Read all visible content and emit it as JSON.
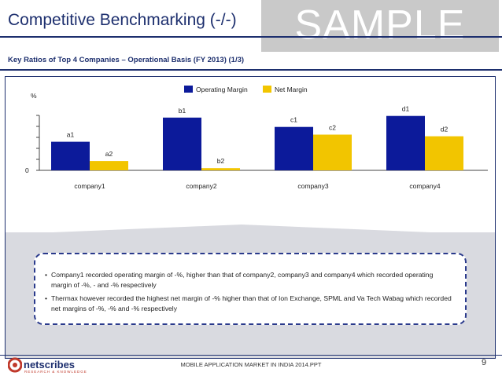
{
  "slide": {
    "title": "Competitive Benchmarking (-/-)",
    "watermark": "SAMPLE",
    "subtitle": "Key Ratios of Top 4 Companies – Operational Basis (FY 2013) (1/3)",
    "footer": "MOBILE APPLICATION MARKET IN INDIA 2014.PPT",
    "page_number": "9",
    "logo_text": "netscribes",
    "logo_tagline": "RESEARCH & KNOWLEDGE"
  },
  "colors": {
    "navy": "#1d2f6e",
    "operating": "#0c1a9a",
    "net": "#f2c500"
  },
  "bullets": [
    "Company1 recorded operating margin of -%, higher than that of company2, company3 and company4 which recorded operating margin of -%, - and -% respectively",
    "Thermax however recorded the highest net margin of -% higher than that of Ion Exchange, SPML and Va Tech Wabag which recorded net margins of -%, -% and -% respectively"
  ],
  "chart_data": {
    "type": "bar",
    "ylabel": "%",
    "ytick_labels": [
      "0"
    ],
    "ylim": [
      0,
      100
    ],
    "legend_position": "top-center",
    "categories": [
      "company1",
      "company2",
      "company3",
      "company4"
    ],
    "series": [
      {
        "name": "Operating Margin",
        "color": "#0c1a9a",
        "values": [
          52,
          96,
          79,
          99
        ],
        "labels": [
          "a1",
          "b1",
          "c1",
          "d1"
        ]
      },
      {
        "name": "Net Margin",
        "color": "#f2c500",
        "values": [
          17,
          4,
          65,
          62
        ],
        "labels": [
          "a2",
          "b2",
          "c2",
          "d2"
        ]
      }
    ]
  }
}
